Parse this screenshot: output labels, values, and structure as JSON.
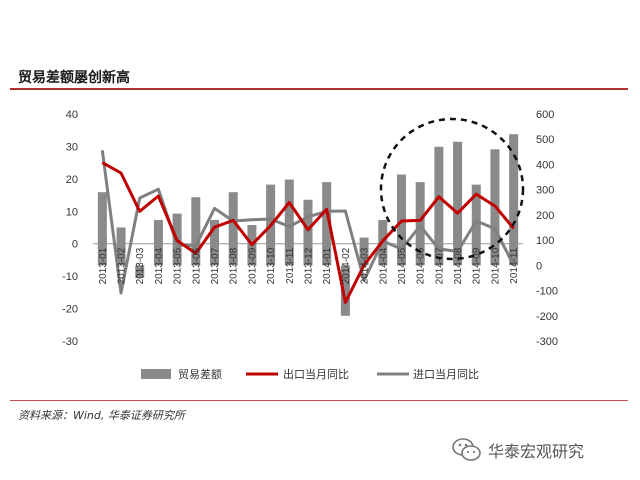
{
  "heading": "贸易差额屡创新高",
  "source": "资料来源：Wind, 华泰证券研究所",
  "watermark": {
    "text": "华泰宏观研究",
    "icon": "wechat-icon"
  },
  "colors": {
    "bars": "#8a8a8a",
    "export": "#c00000",
    "import": "#808080",
    "accent": "#b03030"
  },
  "chart_data": {
    "type": "bar",
    "title": "",
    "xlabel": "",
    "categories": [
      "2013-01",
      "2013-02",
      "2013-03",
      "2013-04",
      "2013-05",
      "2013-06",
      "2013-07",
      "2013-08",
      "2013-09",
      "2013-10",
      "2013-11",
      "2013-12",
      "2014-01",
      "2014-02",
      "2014-03",
      "2014-04",
      "2014-05",
      "2014-06",
      "2014-07",
      "2014-08",
      "2014-09",
      "2014-10",
      "2014-11"
    ],
    "left_axis": {
      "ylim": [
        -30,
        40
      ],
      "ticks": [
        "40",
        "30",
        "20",
        "10",
        "0",
        "-10",
        "-20",
        "-30"
      ]
    },
    "right_axis": {
      "ylim": [
        -300,
        600
      ],
      "ticks": [
        "600",
        "500",
        "400",
        "300",
        "200",
        "100",
        "0",
        "-100",
        "-200",
        "-300"
      ]
    },
    "series": [
      {
        "name": "贸易差额",
        "type": "bar",
        "axis": "right",
        "values": [
          290,
          150,
          -50,
          180,
          205,
          270,
          180,
          290,
          160,
          320,
          340,
          260,
          330,
          -200,
          110,
          180,
          360,
          330,
          470,
          490,
          320,
          460,
          520
        ]
      },
      {
        "name": "出口当月同比",
        "type": "line",
        "axis": "left",
        "values": [
          25,
          21.8,
          10,
          14.7,
          1,
          -3,
          5.1,
          7.2,
          -0.3,
          5.6,
          12.7,
          4.3,
          10.6,
          -18.1,
          -6.6,
          0.9,
          7,
          7.2,
          14.5,
          9.4,
          15.3,
          11.6,
          4.7
        ]
      },
      {
        "name": "进口当月同比",
        "type": "line",
        "axis": "left",
        "values": [
          28.8,
          -15.2,
          14.1,
          16.8,
          -0.3,
          -0.7,
          10.9,
          7,
          7.4,
          7.6,
          5.3,
          8.3,
          10,
          10.1,
          -11.3,
          0.8,
          -1.6,
          5.5,
          -1.6,
          -2.4,
          7,
          4.6,
          -6.7
        ]
      }
    ],
    "annotations": [
      {
        "type": "dashed-circle",
        "around": "2014-05 to 2014-11"
      }
    ],
    "legend": "bottom",
    "grid": false
  }
}
